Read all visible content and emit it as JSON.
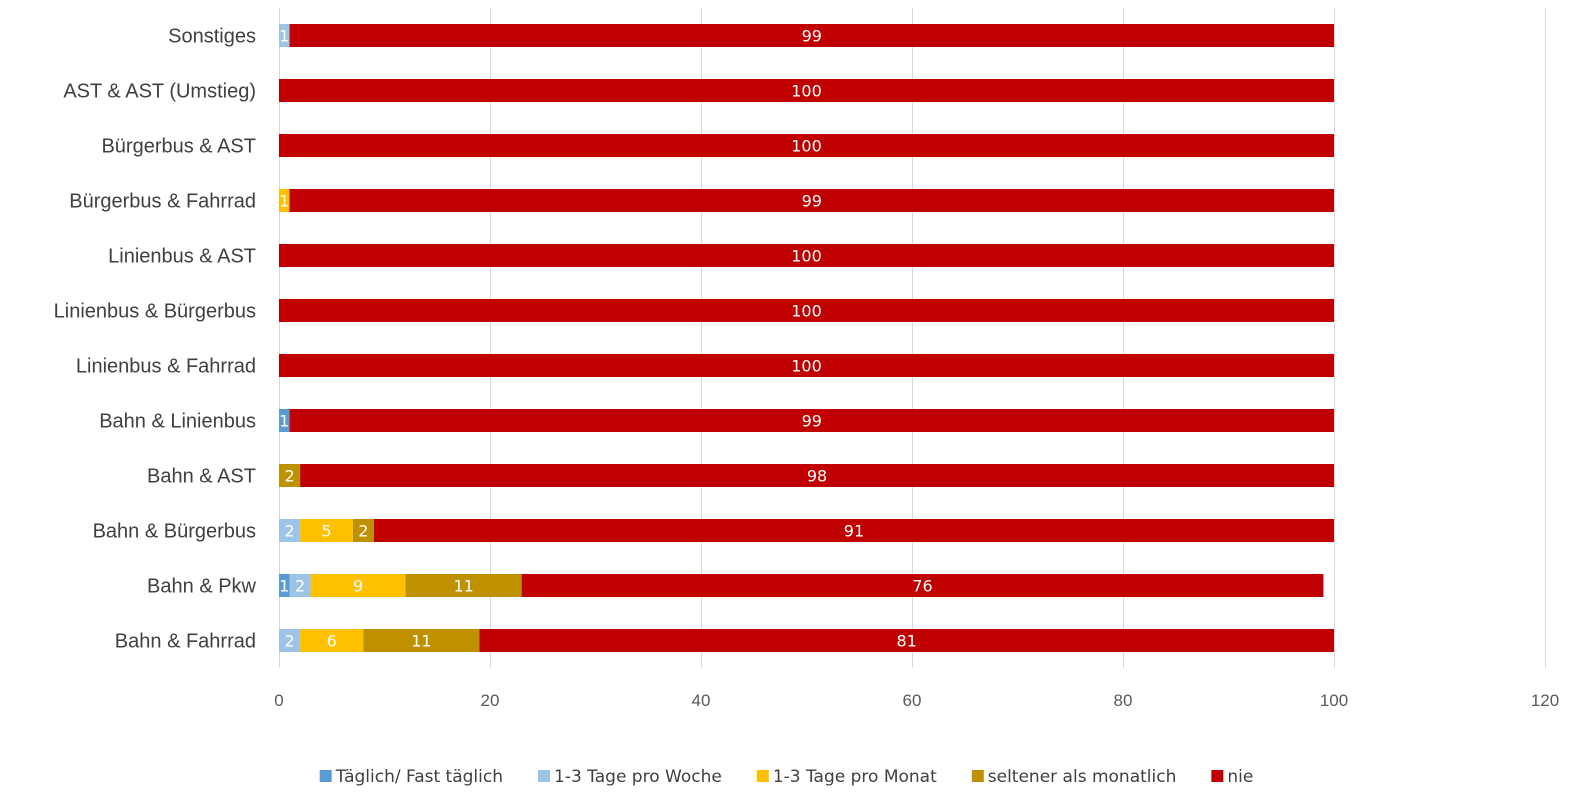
{
  "chart_data": {
    "type": "bar",
    "orientation": "horizontal",
    "stacked": true,
    "categories": [
      "Sonstiges",
      "AST & AST (Umstieg)",
      "Bürgerbus & AST",
      "Bürgerbus & Fahrrad",
      "Linienbus & AST",
      "Linienbus & Bürgerbus",
      "Linienbus & Fahrrad",
      "Bahn & Linienbus",
      "Bahn & AST",
      "Bahn & Bürgerbus",
      "Bahn & Pkw",
      "Bahn & Fahrrad"
    ],
    "series": [
      {
        "name": "Täglich/ Fast täglich",
        "color": "#5b9bd5",
        "values": [
          0,
          0,
          0,
          0,
          0,
          0,
          0,
          1,
          0,
          0,
          1,
          0
        ]
      },
      {
        "name": "1-3 Tage pro Woche",
        "color": "#9dc3e6",
        "values": [
          1,
          0,
          0,
          0,
          0,
          0,
          0,
          0,
          0,
          2,
          2,
          2
        ]
      },
      {
        "name": "1-3 Tage pro Monat",
        "color": "#ffc000",
        "values": [
          0,
          0,
          0,
          1,
          0,
          0,
          0,
          0,
          0,
          5,
          9,
          6
        ]
      },
      {
        "name": "seltener als monatlich",
        "color": "#bf9000",
        "values": [
          0,
          0,
          0,
          0,
          0,
          0,
          0,
          0,
          2,
          2,
          11,
          11
        ]
      },
      {
        "name": "nie",
        "color": "#c00000",
        "values": [
          99,
          100,
          100,
          99,
          100,
          100,
          100,
          99,
          98,
          91,
          76,
          81
        ]
      }
    ],
    "xlim": [
      0,
      120
    ],
    "xticks": [
      0,
      20,
      40,
      60,
      80,
      100,
      120
    ],
    "grid": "vertical",
    "legend": "bottom",
    "title": "",
    "xlabel": "",
    "ylabel": ""
  }
}
